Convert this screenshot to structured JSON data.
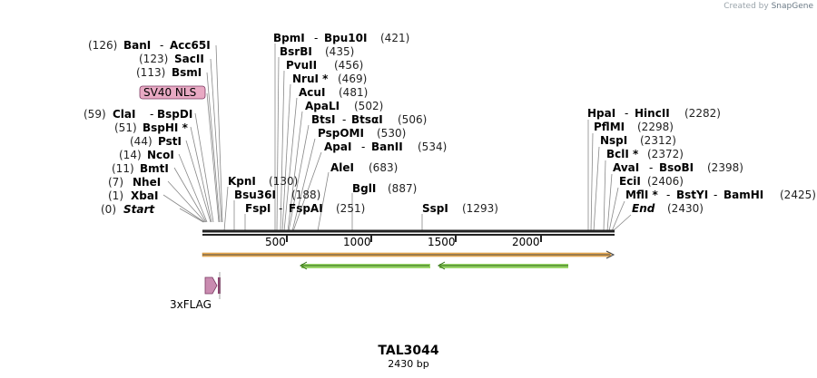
{
  "credit": {
    "prefix": "Created by",
    "brand": "SnapGene"
  },
  "map": {
    "name": "TAL3044",
    "length_label": "2430 bp",
    "length_bp": 2430
  },
  "ruler_ticks": [
    "500",
    "1000",
    "1500",
    "2000"
  ],
  "sites_left": [
    {
      "pos": "(126)",
      "enzyme": "BanI",
      "partner": "Acc65I",
      "bp": 126
    },
    {
      "pos": "(123)",
      "enzyme": "SacII",
      "bp": 123
    },
    {
      "pos": "(113)",
      "enzyme": "BsmI",
      "bp": 113
    },
    {
      "pos": "(59)",
      "enzyme": "ClaI",
      "partner": "BspDI",
      "bp": 59
    },
    {
      "pos": "(51)",
      "enzyme": "BspHI *",
      "bp": 51
    },
    {
      "pos": "(44)",
      "enzyme": "PstI",
      "bp": 44
    },
    {
      "pos": "(14)",
      "enzyme": "NcoI",
      "bp": 14
    },
    {
      "pos": "(11)",
      "enzyme": "BmtI",
      "bp": 11
    },
    {
      "pos": "(7)",
      "enzyme": "NheI",
      "bp": 7
    },
    {
      "pos": "(1)",
      "enzyme": "XbaI",
      "bp": 1
    },
    {
      "pos": "(0)",
      "enzyme": "Start",
      "bp": 0
    }
  ],
  "sites_middle": [
    {
      "enzyme": "BpmI",
      "partner": "Bpu10I",
      "pos": "(421)",
      "bp": 421
    },
    {
      "enzyme": "BsrBI",
      "pos": "(435)",
      "bp": 435
    },
    {
      "enzyme": "PvuII",
      "pos": "(456)",
      "bp": 456
    },
    {
      "enzyme": "NruI *",
      "pos": "(469)",
      "bp": 469
    },
    {
      "enzyme": "AcuI",
      "pos": "(481)",
      "bp": 481
    },
    {
      "enzyme": "ApaLI",
      "pos": "(502)",
      "bp": 502
    },
    {
      "enzyme": "BtsI",
      "partner": "BtsαI",
      "pos": "(506)",
      "bp": 506
    },
    {
      "enzyme": "PspOMI",
      "pos": "(530)",
      "bp": 530
    },
    {
      "enzyme": "ApaI",
      "partner": "BanII",
      "pos": "(534)",
      "bp": 534
    },
    {
      "enzyme": "AleI",
      "pos": "(683)",
      "bp": 683
    },
    {
      "enzyme": "BglI",
      "pos": "(887)",
      "bp": 887
    },
    {
      "enzyme": "KpnI",
      "pos": "(130)",
      "bp": 130
    },
    {
      "enzyme": "Bsu36I",
      "pos": "(188)",
      "bp": 188
    },
    {
      "enzyme": "FspI",
      "partner": "FspAI",
      "pos": "(251)",
      "bp": 251
    },
    {
      "enzyme": "SspI",
      "pos": "(1293)",
      "bp": 1293
    }
  ],
  "sites_right": [
    {
      "enzyme": "HpaI",
      "partner": "HincII",
      "pos": "(2282)",
      "bp": 2282
    },
    {
      "enzyme": "PflMI",
      "pos": "(2298)",
      "bp": 2298
    },
    {
      "enzyme": "NspI",
      "pos": "(2312)",
      "bp": 2312
    },
    {
      "enzyme": "BclI *",
      "pos": "(2372)",
      "bp": 2372
    },
    {
      "enzyme": "AvaI",
      "partner": "BsoBI",
      "pos": "(2398)",
      "bp": 2398
    },
    {
      "enzyme": "EciI",
      "pos": "(2406)",
      "bp": 2406
    },
    {
      "enzyme": "MflI *",
      "partner": "BstYI",
      "partner2": "BamHI",
      "pos": "(2425)",
      "bp": 2425
    },
    {
      "enzyme": "End",
      "pos": "(2430)",
      "bp": 2430
    }
  ],
  "features": [
    {
      "label": "SV40 NLS",
      "color": "#e8a9c3"
    },
    {
      "label": "3xFLAG",
      "color": "#c98bb0"
    }
  ],
  "colors": {
    "backbone": "#222222",
    "orange_feature": "#f2b35a",
    "green_feature": "#6ab82c",
    "feature_pink": "#e8a9c3"
  }
}
